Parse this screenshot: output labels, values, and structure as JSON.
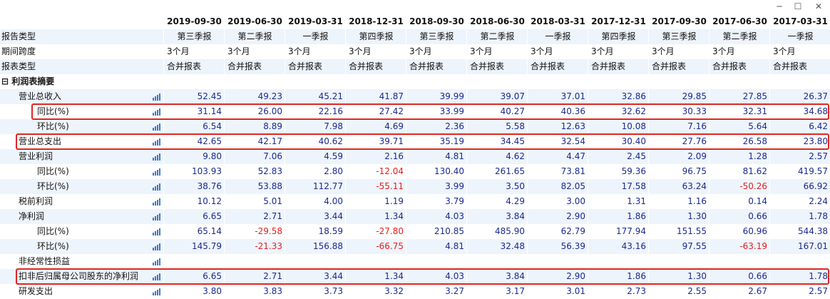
{
  "window": {
    "minimize_glyph": "─",
    "maximize_glyph": "☐",
    "close_glyph": "✕"
  },
  "periods": [
    "2019-09-30",
    "2019-06-30",
    "2019-03-31",
    "2018-12-31",
    "2018-09-30",
    "2018-06-30",
    "2018-03-31",
    "2017-12-31",
    "2017-09-30",
    "2017-06-30",
    "2017-03-31"
  ],
  "colors": {
    "negative": "#e02020",
    "value": "#1a2a8c",
    "highlight": "#e32424",
    "row_alt": "#eef4fb"
  },
  "rows": [
    {
      "label": "报告类型",
      "indent": 0,
      "kind": "center",
      "chart_icon": false,
      "values": [
        "第三季报",
        "第二季报",
        "一季报",
        "第四季报",
        "第三季报",
        "第二季报",
        "一季报",
        "第四季报",
        "第三季报",
        "第二季报",
        "一季报"
      ]
    },
    {
      "label": "期间跨度",
      "indent": 0,
      "kind": "text",
      "chart_icon": false,
      "values": [
        "3个月",
        "3个月",
        "3个月",
        "3个月",
        "3个月",
        "3个月",
        "3个月",
        "3个月",
        "3个月",
        "3个月",
        "3个月"
      ]
    },
    {
      "label": "报表类型",
      "indent": 0,
      "kind": "text",
      "chart_icon": false,
      "values": [
        "合并报表",
        "合并报表",
        "合并报表",
        "合并报表",
        "合并报表",
        "合并报表",
        "合并报表",
        "合并报表",
        "合并报表",
        "合并报表",
        "合并报表"
      ]
    },
    {
      "label": "⊟ 利润表摘要",
      "indent": 0,
      "kind": "section",
      "chart_icon": false,
      "values": []
    },
    {
      "label": "营业总收入",
      "indent": 1,
      "kind": "num",
      "chart_icon": true,
      "values": [
        "52.45",
        "49.23",
        "45.21",
        "41.87",
        "39.99",
        "39.07",
        "37.01",
        "32.86",
        "29.85",
        "27.85",
        "26.37"
      ]
    },
    {
      "label": "同比(%)",
      "indent": 2,
      "kind": "num",
      "chart_icon": true,
      "values": [
        "31.14",
        "26.00",
        "22.16",
        "27.42",
        "33.99",
        "40.27",
        "40.36",
        "32.62",
        "30.33",
        "32.31",
        "34.68"
      ]
    },
    {
      "label": "环比(%)",
      "indent": 2,
      "kind": "num",
      "chart_icon": true,
      "values": [
        "6.54",
        "8.89",
        "7.98",
        "4.69",
        "2.36",
        "5.58",
        "12.63",
        "10.08",
        "7.16",
        "5.64",
        "6.42"
      ]
    },
    {
      "label": "营业总支出",
      "indent": 1,
      "kind": "num",
      "chart_icon": true,
      "values": [
        "42.65",
        "42.17",
        "40.62",
        "39.71",
        "35.19",
        "34.45",
        "32.54",
        "30.40",
        "27.76",
        "26.58",
        "23.80"
      ]
    },
    {
      "label": "营业利润",
      "indent": 1,
      "kind": "num",
      "chart_icon": true,
      "values": [
        "9.80",
        "7.06",
        "4.59",
        "2.16",
        "4.81",
        "4.62",
        "4.47",
        "2.45",
        "2.09",
        "1.28",
        "2.57"
      ]
    },
    {
      "label": "同比(%)",
      "indent": 2,
      "kind": "num",
      "chart_icon": true,
      "values": [
        "103.93",
        "52.83",
        "2.80",
        "-12.04",
        "130.40",
        "261.65",
        "73.81",
        "59.36",
        "96.75",
        "81.62",
        "419.57"
      ]
    },
    {
      "label": "环比(%)",
      "indent": 2,
      "kind": "num",
      "chart_icon": true,
      "values": [
        "38.76",
        "53.88",
        "112.77",
        "-55.11",
        "3.99",
        "3.50",
        "82.05",
        "17.58",
        "63.24",
        "-50.26",
        "66.92"
      ]
    },
    {
      "label": "税前利润",
      "indent": 1,
      "kind": "num",
      "chart_icon": true,
      "values": [
        "10.12",
        "5.01",
        "4.00",
        "1.19",
        "3.79",
        "4.29",
        "3.00",
        "1.31",
        "1.16",
        "0.14",
        "2.24"
      ]
    },
    {
      "label": "净利润",
      "indent": 1,
      "kind": "num",
      "chart_icon": true,
      "values": [
        "6.65",
        "2.71",
        "3.44",
        "1.34",
        "4.03",
        "3.84",
        "2.90",
        "1.86",
        "1.30",
        "0.66",
        "1.78"
      ]
    },
    {
      "label": "同比(%)",
      "indent": 2,
      "kind": "num",
      "chart_icon": true,
      "values": [
        "65.14",
        "-29.58",
        "18.59",
        "-27.80",
        "210.85",
        "485.90",
        "62.79",
        "177.94",
        "151.55",
        "60.96",
        "544.38"
      ]
    },
    {
      "label": "环比(%)",
      "indent": 2,
      "kind": "num",
      "chart_icon": true,
      "values": [
        "145.79",
        "-21.33",
        "156.88",
        "-66.75",
        "4.81",
        "32.48",
        "56.39",
        "43.16",
        "97.55",
        "-63.19",
        "167.01"
      ]
    },
    {
      "label": "非经常性损益",
      "indent": 1,
      "kind": "num",
      "chart_icon": true,
      "values": []
    },
    {
      "label": "扣非后归属母公司股东的净利润",
      "indent": 1,
      "kind": "num",
      "chart_icon": true,
      "values": [
        "6.65",
        "2.71",
        "3.44",
        "1.34",
        "4.03",
        "3.84",
        "2.90",
        "1.86",
        "1.30",
        "0.66",
        "1.78"
      ]
    },
    {
      "label": "研发支出",
      "indent": 1,
      "kind": "num",
      "chart_icon": true,
      "values": [
        "3.80",
        "3.83",
        "3.73",
        "3.32",
        "3.27",
        "3.17",
        "3.01",
        "2.73",
        "2.55",
        "2.67",
        "2.57"
      ]
    }
  ],
  "highlighted_rows": [
    5,
    7,
    16
  ]
}
